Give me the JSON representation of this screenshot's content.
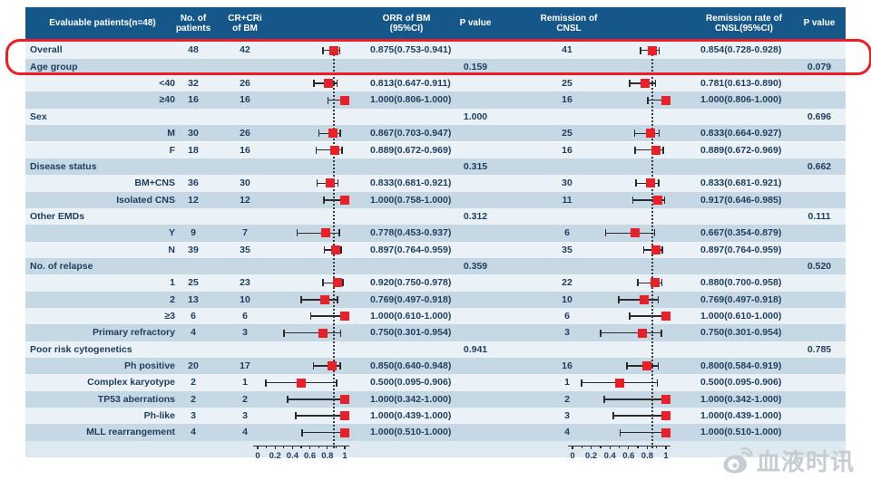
{
  "watermark": {
    "text": "血液时讯",
    "icon": "weibo-eye-icon",
    "color": "#c6ccd2"
  },
  "colors": {
    "header_bg": "#16578a",
    "header_text": "#ffffff",
    "row_light": "#eaf1f7",
    "row_dark": "#c7d8e5",
    "axis_band": "#dfe9f2",
    "body_text": "#1e3d5c",
    "marker_red": "#e8202a",
    "annotation_red": "#ee1c25",
    "rule_red": "#d6232b"
  },
  "table": {
    "headers": {
      "evaluable": [
        "Evaluable patients(n=48)"
      ],
      "n_patients": [
        "No. of",
        "patients"
      ],
      "cr_cri": [
        "CR+CRi",
        "of BM"
      ],
      "orr": [
        "ORR of BM",
        "(95%CI)"
      ],
      "p1": [
        "P value"
      ],
      "remission": [
        "Remission of",
        "CNSL"
      ],
      "remission_rate": [
        "Remission rate of",
        "CNSL(95%CI)"
      ],
      "p2": [
        "P value"
      ]
    },
    "axis_tick_labels": [
      "0",
      "0.2",
      "0.4",
      "0.6",
      "0.8",
      "1"
    ],
    "axis_tick_values": [
      0,
      0.2,
      0.4,
      0.6,
      0.8,
      1
    ],
    "minor_tick_values": [
      0.1,
      0.3,
      0.5,
      0.7,
      0.9
    ],
    "rows": [
      {
        "type": "overall",
        "label": "Overall",
        "n": "48",
        "cr": "42",
        "bm": {
          "est": 0.875,
          "lo": 0.753,
          "hi": 0.941,
          "text": "0.875(0.753-0.941)"
        },
        "rn": "41",
        "cnsl": {
          "est": 0.854,
          "lo": 0.728,
          "hi": 0.928,
          "text": "0.854(0.728-0.928)"
        }
      },
      {
        "type": "section",
        "label": "Age group",
        "p1": "0.159",
        "p2": "0.079"
      },
      {
        "type": "sub",
        "label": "<40",
        "n": "32",
        "cr": "26",
        "bm": {
          "est": 0.813,
          "lo": 0.647,
          "hi": 0.911,
          "text": "0.813(0.647-0.911)"
        },
        "rn": "25",
        "cnsl": {
          "est": 0.781,
          "lo": 0.613,
          "hi": 0.89,
          "text": "0.781(0.613-0.890)"
        }
      },
      {
        "type": "sub",
        "label": "≥40",
        "n": "16",
        "cr": "16",
        "bm": {
          "est": 1.0,
          "lo": 0.806,
          "hi": 1.0,
          "text": "1.000(0.806-1.000)"
        },
        "rn": "16",
        "cnsl": {
          "est": 1.0,
          "lo": 0.806,
          "hi": 1.0,
          "text": "1.000(0.806-1.000)"
        }
      },
      {
        "type": "section",
        "label": "Sex",
        "p1": "1.000",
        "p2": "0.696"
      },
      {
        "type": "sub",
        "label": "M",
        "n": "30",
        "cr": "26",
        "bm": {
          "est": 0.867,
          "lo": 0.703,
          "hi": 0.947,
          "text": "0.867(0.703-0.947)"
        },
        "rn": "25",
        "cnsl": {
          "est": 0.833,
          "lo": 0.664,
          "hi": 0.927,
          "text": "0.833(0.664-0.927)"
        }
      },
      {
        "type": "sub",
        "label": "F",
        "n": "18",
        "cr": "16",
        "bm": {
          "est": 0.889,
          "lo": 0.672,
          "hi": 0.969,
          "text": "0.889(0.672-0.969)"
        },
        "rn": "16",
        "cnsl": {
          "est": 0.889,
          "lo": 0.672,
          "hi": 0.969,
          "text": "0.889(0.672-0.969)"
        }
      },
      {
        "type": "section",
        "label": "Disease status",
        "p1": "0.315",
        "p2": "0.662"
      },
      {
        "type": "sub",
        "label": "BM+CNS",
        "n": "36",
        "cr": "30",
        "bm": {
          "est": 0.833,
          "lo": 0.681,
          "hi": 0.921,
          "text": "0.833(0.681-0.921)"
        },
        "rn": "30",
        "cnsl": {
          "est": 0.833,
          "lo": 0.681,
          "hi": 0.921,
          "text": "0.833(0.681-0.921)"
        }
      },
      {
        "type": "sub",
        "label": "Isolated CNS",
        "n": "12",
        "cr": "12",
        "bm": {
          "est": 1.0,
          "lo": 0.758,
          "hi": 1.0,
          "text": "1.000(0.758-1.000)"
        },
        "rn": "11",
        "cnsl": {
          "est": 0.917,
          "lo": 0.646,
          "hi": 0.985,
          "text": "0.917(0.646-0.985)"
        }
      },
      {
        "type": "section",
        "label": "Other EMDs",
        "p1": "0.312",
        "p2": "0.111"
      },
      {
        "type": "sub",
        "label": "Y",
        "n": "9",
        "cr": "7",
        "bm": {
          "est": 0.778,
          "lo": 0.453,
          "hi": 0.937,
          "text": "0.778(0.453-0.937)"
        },
        "rn": "6",
        "cnsl": {
          "est": 0.667,
          "lo": 0.354,
          "hi": 0.879,
          "text": "0.667(0.354-0.879)"
        }
      },
      {
        "type": "sub",
        "label": "N",
        "n": "39",
        "cr": "35",
        "bm": {
          "est": 0.897,
          "lo": 0.764,
          "hi": 0.959,
          "text": "0.897(0.764-0.959)"
        },
        "rn": "35",
        "cnsl": {
          "est": 0.897,
          "lo": 0.764,
          "hi": 0.959,
          "text": "0.897(0.764-0.959)"
        }
      },
      {
        "type": "section",
        "label": "No. of relapse",
        "p1": "0.359",
        "p2": "0.520"
      },
      {
        "type": "sub",
        "label": "1",
        "n": "25",
        "cr": "23",
        "bm": {
          "est": 0.92,
          "lo": 0.75,
          "hi": 0.978,
          "text": "0.920(0.750-0.978)"
        },
        "rn": "22",
        "cnsl": {
          "est": 0.88,
          "lo": 0.7,
          "hi": 0.958,
          "text": "0.880(0.700-0.958)"
        }
      },
      {
        "type": "sub",
        "label": "2",
        "n": "13",
        "cr": "10",
        "bm": {
          "est": 0.769,
          "lo": 0.497,
          "hi": 0.918,
          "text": "0.769(0.497-0.918)"
        },
        "rn": "10",
        "cnsl": {
          "est": 0.769,
          "lo": 0.497,
          "hi": 0.918,
          "text": "0.769(0.497-0.918)"
        }
      },
      {
        "type": "sub",
        "label": "≥3",
        "n": "6",
        "cr": "6",
        "bm": {
          "est": 1.0,
          "lo": 0.61,
          "hi": 1.0,
          "text": "1.000(0.610-1.000)"
        },
        "rn": "6",
        "cnsl": {
          "est": 1.0,
          "lo": 0.61,
          "hi": 1.0,
          "text": "1.000(0.610-1.000)"
        }
      },
      {
        "type": "sub",
        "label": "Primary refractory",
        "n": "4",
        "cr": "3",
        "bm": {
          "est": 0.75,
          "lo": 0.301,
          "hi": 0.954,
          "text": "0.750(0.301-0.954)"
        },
        "rn": "3",
        "cnsl": {
          "est": 0.75,
          "lo": 0.301,
          "hi": 0.954,
          "text": "0.750(0.301-0.954)"
        }
      },
      {
        "type": "section",
        "label": "Poor risk cytogenetics",
        "p1": "0.941",
        "p2": "0.785"
      },
      {
        "type": "sub",
        "label": "Ph positive",
        "n": "20",
        "cr": "17",
        "bm": {
          "est": 0.85,
          "lo": 0.64,
          "hi": 0.948,
          "text": "0.850(0.640-0.948)"
        },
        "rn": "16",
        "cnsl": {
          "est": 0.8,
          "lo": 0.584,
          "hi": 0.919,
          "text": "0.800(0.584-0.919)"
        }
      },
      {
        "type": "sub",
        "label": "Complex karyotype",
        "n": "2",
        "cr": "1",
        "bm": {
          "est": 0.5,
          "lo": 0.095,
          "hi": 0.906,
          "text": "0.500(0.095-0.906)"
        },
        "rn": "1",
        "cnsl": {
          "est": 0.5,
          "lo": 0.095,
          "hi": 0.906,
          "text": "0.500(0.095-0.906)"
        }
      },
      {
        "type": "sub",
        "label": "TP53 aberrations",
        "n": "2",
        "cr": "2",
        "bm": {
          "est": 1.0,
          "lo": 0.342,
          "hi": 1.0,
          "text": "1.000(0.342-1.000)"
        },
        "rn": "2",
        "cnsl": {
          "est": 1.0,
          "lo": 0.342,
          "hi": 1.0,
          "text": "1.000(0.342-1.000)"
        }
      },
      {
        "type": "sub",
        "label": "Ph-like",
        "n": "3",
        "cr": "3",
        "bm": {
          "est": 1.0,
          "lo": 0.439,
          "hi": 1.0,
          "text": "1.000(0.439-1.000)"
        },
        "rn": "3",
        "cnsl": {
          "est": 1.0,
          "lo": 0.439,
          "hi": 1.0,
          "text": "1.000(0.439-1.000)"
        }
      },
      {
        "type": "sub",
        "label": "MLL rearrangement",
        "n": "4",
        "cr": "4",
        "bm": {
          "est": 1.0,
          "lo": 0.51,
          "hi": 1.0,
          "text": "1.000(0.510-1.000)"
        },
        "rn": "4",
        "cnsl": {
          "est": 1.0,
          "lo": 0.51,
          "hi": 1.0,
          "text": "1.000(0.510-1.000)"
        }
      }
    ]
  },
  "chart_data": [
    {
      "type": "scatter",
      "subtype": "forest-plot",
      "title": "ORR of BM (95%CI)",
      "xlim": [
        0,
        1
      ],
      "x_ticks": [
        0,
        0.2,
        0.4,
        0.6,
        0.8,
        1
      ],
      "reference_line": 0.875,
      "categories": [
        "Overall",
        "<40",
        "≥40",
        "M",
        "F",
        "BM+CNS",
        "Isolated CNS",
        "Y",
        "N",
        "1",
        "2",
        "≥3",
        "Primary refractory",
        "Ph positive",
        "Complex karyotype",
        "TP53 aberrations",
        "Ph-like",
        "MLL rearrangement"
      ],
      "estimates": [
        0.875,
        0.813,
        1.0,
        0.867,
        0.889,
        0.833,
        1.0,
        0.778,
        0.897,
        0.92,
        0.769,
        1.0,
        0.75,
        0.85,
        0.5,
        1.0,
        1.0,
        1.0
      ],
      "ci_low": [
        0.753,
        0.647,
        0.806,
        0.703,
        0.672,
        0.681,
        0.758,
        0.453,
        0.764,
        0.75,
        0.497,
        0.61,
        0.301,
        0.64,
        0.095,
        0.342,
        0.439,
        0.51
      ],
      "ci_high": [
        0.941,
        0.911,
        1.0,
        0.947,
        0.969,
        0.921,
        1.0,
        0.937,
        0.959,
        0.978,
        0.918,
        1.0,
        0.954,
        0.948,
        0.906,
        1.0,
        1.0,
        1.0
      ],
      "p_values": {
        "Age group": "0.159",
        "Sex": "1.000",
        "Disease status": "0.315",
        "Other EMDs": "0.312",
        "No. of relapse": "0.359",
        "Poor risk cytogenetics": "0.941"
      }
    },
    {
      "type": "scatter",
      "subtype": "forest-plot",
      "title": "Remission rate of CNSL(95%CI)",
      "xlim": [
        0,
        1
      ],
      "x_ticks": [
        0,
        0.2,
        0.4,
        0.6,
        0.8,
        1
      ],
      "reference_line": 0.854,
      "categories": [
        "Overall",
        "<40",
        "≥40",
        "M",
        "F",
        "BM+CNS",
        "Isolated CNS",
        "Y",
        "N",
        "1",
        "2",
        "≥3",
        "Primary refractory",
        "Ph positive",
        "Complex karyotype",
        "TP53 aberrations",
        "Ph-like",
        "MLL rearrangement"
      ],
      "estimates": [
        0.854,
        0.781,
        1.0,
        0.833,
        0.889,
        0.833,
        0.917,
        0.667,
        0.897,
        0.88,
        0.769,
        1.0,
        0.75,
        0.8,
        0.5,
        1.0,
        1.0,
        1.0
      ],
      "ci_low": [
        0.728,
        0.613,
        0.806,
        0.664,
        0.672,
        0.681,
        0.646,
        0.354,
        0.764,
        0.7,
        0.497,
        0.61,
        0.301,
        0.584,
        0.095,
        0.342,
        0.439,
        0.51
      ],
      "ci_high": [
        0.928,
        0.89,
        1.0,
        0.927,
        0.969,
        0.921,
        0.985,
        0.879,
        0.959,
        0.958,
        0.918,
        1.0,
        0.954,
        0.919,
        0.906,
        1.0,
        1.0,
        1.0
      ],
      "p_values": {
        "Age group": "0.079",
        "Sex": "0.696",
        "Disease status": "0.662",
        "Other EMDs": "0.111",
        "No. of relapse": "0.520",
        "Poor risk cytogenetics": "0.785"
      }
    }
  ]
}
